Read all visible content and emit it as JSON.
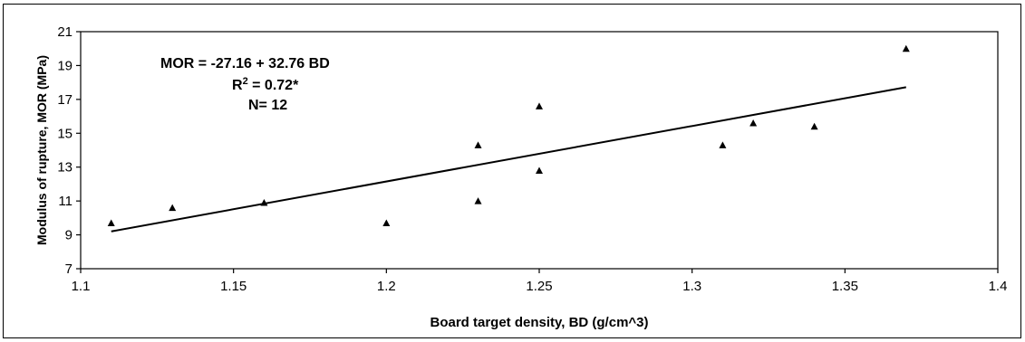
{
  "chart_data": {
    "type": "scatter",
    "title": "",
    "xlabel": "Board target density, BD (g/cm^3)",
    "ylabel": "Modulus of rupture, MOR (MPa)",
    "xlim": [
      1.1,
      1.4
    ],
    "ylim": [
      7,
      21
    ],
    "xticks": [
      1.1,
      1.15,
      1.2,
      1.25,
      1.3,
      1.35,
      1.4
    ],
    "yticks": [
      7,
      9,
      11,
      13,
      15,
      17,
      19,
      21
    ],
    "xtick_labels": [
      "1.1",
      "1.15",
      "1.2",
      "1.25",
      "1.3",
      "1.35",
      "1.4"
    ],
    "ytick_labels": [
      "7",
      "9",
      "11",
      "13",
      "15",
      "17",
      "19",
      "21"
    ],
    "grid": false,
    "legend": "none",
    "marker": "triangle",
    "series": [
      {
        "points": [
          [
            1.11,
            9.7
          ],
          [
            1.13,
            10.6
          ],
          [
            1.16,
            10.9
          ],
          [
            1.2,
            9.7
          ],
          [
            1.23,
            14.3
          ],
          [
            1.23,
            11.0
          ],
          [
            1.25,
            16.6
          ],
          [
            1.25,
            12.8
          ],
          [
            1.31,
            14.3
          ],
          [
            1.32,
            15.6
          ],
          [
            1.34,
            15.4
          ],
          [
            1.37,
            20.0
          ]
        ]
      }
    ],
    "trendline": {
      "intercept": -27.16,
      "slope": 32.76,
      "x_range": [
        1.11,
        1.37
      ]
    },
    "annotations": {
      "equation": "MOR = -27.16 + 32.76 BD",
      "r2_prefix": "R",
      "r2_sup": "2",
      "r2_suffix": " = 0.72*",
      "n_text": "N= 12"
    }
  }
}
